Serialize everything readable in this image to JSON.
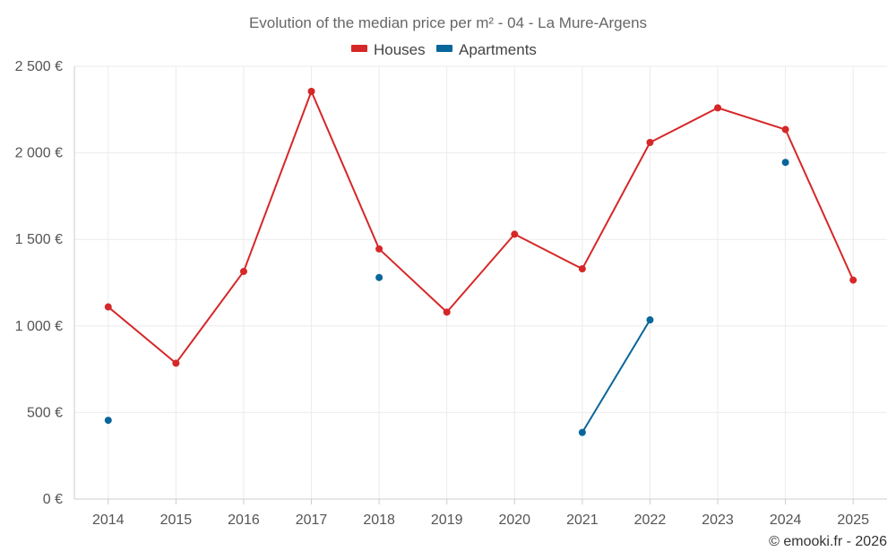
{
  "chart_data": {
    "type": "line",
    "title": "Evolution of the median price per m² - 04 - La Mure-Argens",
    "categories": [
      "2014",
      "2015",
      "2016",
      "2017",
      "2018",
      "2019",
      "2020",
      "2021",
      "2022",
      "2023",
      "2024",
      "2025"
    ],
    "ylim": [
      0,
      2500
    ],
    "yticks": [
      0,
      500,
      1000,
      1500,
      2000,
      2500
    ],
    "ytick_labels": [
      "0 €",
      "500 €",
      "1 000 €",
      "1 500 €",
      "2 000 €",
      "2 500 €"
    ],
    "legend_position": "top-center",
    "grid": true,
    "series": [
      {
        "name": "Houses",
        "color": "#d62728",
        "values": [
          1110,
          785,
          1315,
          2355,
          1445,
          1080,
          1530,
          1330,
          2060,
          2260,
          2135,
          1265
        ]
      },
      {
        "name": "Apartments",
        "color": "#08669a",
        "values": [
          455,
          null,
          null,
          null,
          1280,
          null,
          null,
          385,
          1035,
          null,
          1945,
          null
        ]
      }
    ]
  },
  "credit": "© emooki.fr - 2026"
}
